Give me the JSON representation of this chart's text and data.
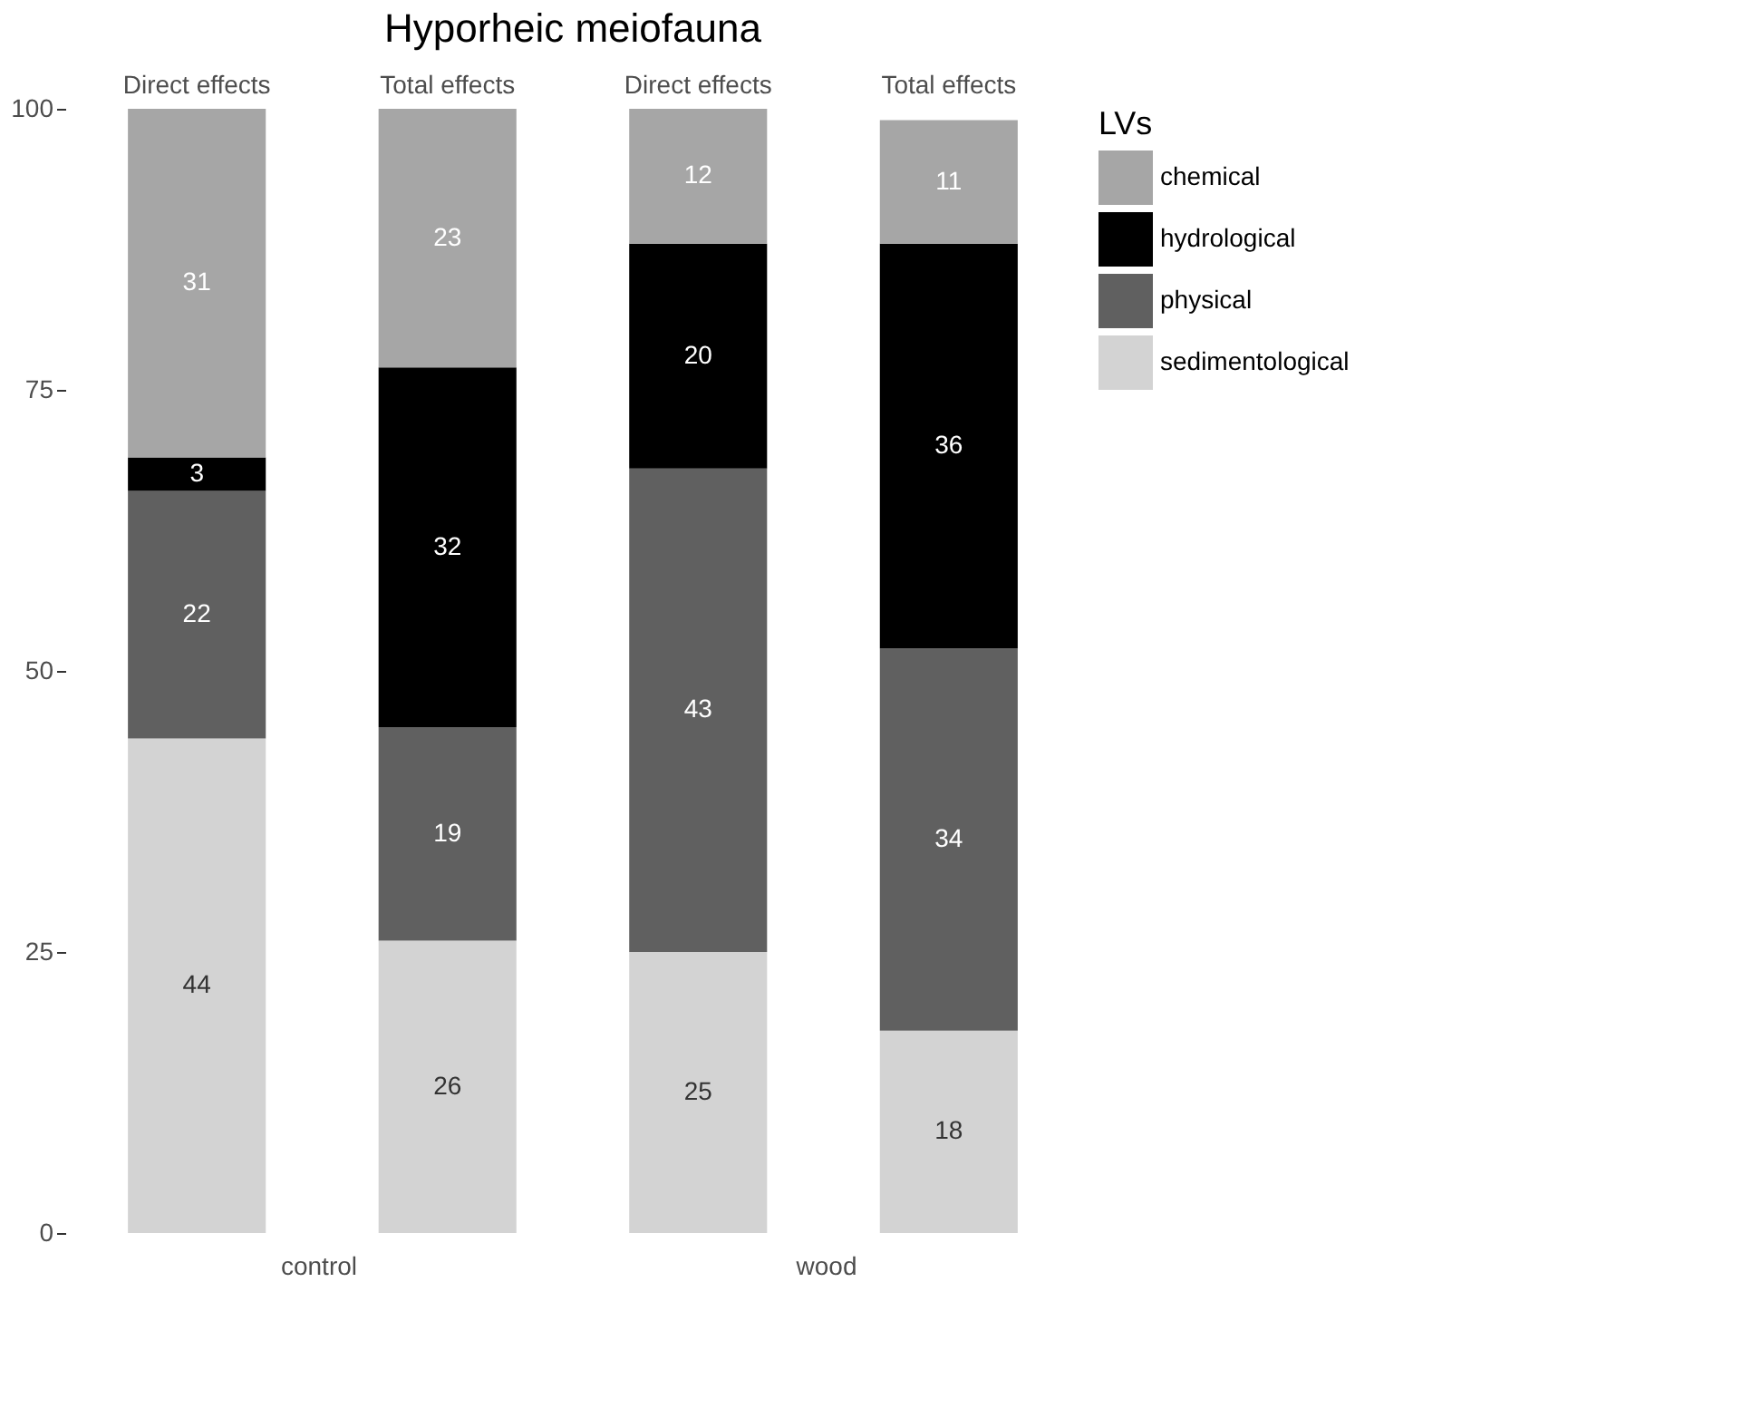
{
  "chart_data": {
    "type": "bar",
    "title": "Hyporheic meiofauna",
    "categories": [
      "Direct effects",
      "Total effects",
      "Direct effects",
      "Total effects"
    ],
    "annotations": [
      "control",
      "wood"
    ],
    "stacked": true,
    "data_labels": true,
    "legend": "right",
    "legend_title": "LVs",
    "grid": false,
    "ylim": [
      0,
      100
    ],
    "yticks": [
      0,
      25,
      50,
      75,
      100
    ],
    "series": [
      {
        "name": "sedimentological",
        "color": "#d3d3d3",
        "values": [
          44,
          26,
          25,
          18
        ]
      },
      {
        "name": "physical",
        "color": "#606060",
        "values": [
          22,
          19,
          43,
          34
        ]
      },
      {
        "name": "hydrological",
        "color": "#000000",
        "values": [
          3,
          32,
          20,
          36
        ]
      },
      {
        "name": "chemical",
        "color": "#a6a6a6",
        "values": [
          31,
          23,
          12,
          11
        ]
      }
    ]
  }
}
